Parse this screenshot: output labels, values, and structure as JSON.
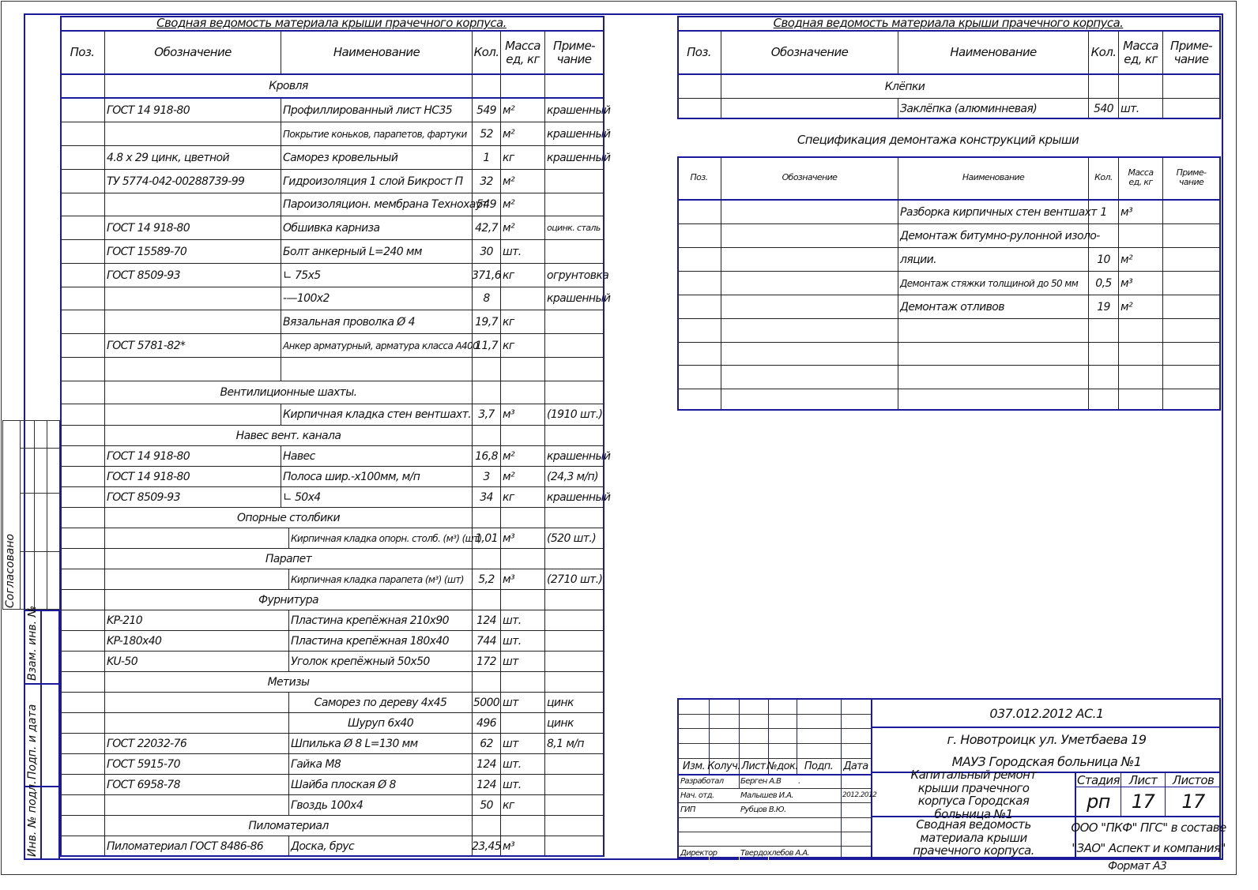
{
  "left_table": {
    "title": "Сводная ведомость материала  крыши прачечного корпуса.",
    "headers": {
      "pos": "Поз.",
      "designation": "Обозначение",
      "name": "Наименование",
      "qty": "Кол.",
      "mass": "Масса ед, кг",
      "note": "Приме- чание"
    },
    "rows": [
      {
        "section": "Кровля"
      },
      {
        "designation": "ГОСТ 14 918-80",
        "name": "Профиллированный лист НС35",
        "qty": "549",
        "unit": "м²",
        "note": "крашенный"
      },
      {
        "designation": "",
        "name": "Покрытие коньков, парапетов, фартуки",
        "qty": "52",
        "unit": "м²",
        "note": "крашенный"
      },
      {
        "designation": "4.8 х 29 цинк, цветной",
        "name": "Саморез кровельный",
        "qty": "1",
        "unit": "кг",
        "note": "крашенный"
      },
      {
        "designation": "ТУ 5774-042-00288739-99",
        "name": "Гидроизоляция 1 слой Бикрост П",
        "qty": "32",
        "unit": "м²",
        "note": ""
      },
      {
        "designation": "",
        "name": "Пароизоляцион. мембрана Технохаут",
        "qty": "549",
        "unit": "м²",
        "note": ""
      },
      {
        "designation": "ГОСТ 14 918-80",
        "name": "Обшивка карниза",
        "qty": "42,7",
        "unit": "м²",
        "note": "оцинк. сталь"
      },
      {
        "designation": "ГОСТ 15589-70",
        "name": "Болт анкерный L=240 мм",
        "qty": "30",
        "unit": "шт.",
        "note": ""
      },
      {
        "designation": "ГОСТ 8509-93",
        "name": "∟ 75х5",
        "qty": "371,6",
        "unit": "кг",
        "note": "огрунтовка"
      },
      {
        "designation": "",
        "name": "-—100х2",
        "qty": "8",
        "unit": "",
        "note": "крашенный"
      },
      {
        "designation": "",
        "name": "Вязальная проволка Ø 4",
        "qty": "19,7",
        "unit": "кг",
        "note": ""
      },
      {
        "designation": "ГОСТ 5781-82*",
        "name": "Анкер арматурный, арматура класса А400",
        "qty": "11,7",
        "unit": "кг",
        "note": ""
      },
      {
        "designation": "",
        "name": "",
        "qty": "",
        "unit": "",
        "note": ""
      },
      {
        "section": "Вентилиционные шахты."
      },
      {
        "designation": "",
        "name": "Кирпичная кладка стен вентшахт.",
        "qty": "3,7",
        "unit": "м³",
        "note": "(1910 шт.)"
      },
      {
        "section": "Навес вент. канала"
      },
      {
        "designation": " ГОСТ 14 918-80",
        "name": "Навес",
        "qty": "16,8",
        "unit": "м²",
        "note": "крашенный"
      },
      {
        "designation": "ГОСТ 14 918-80",
        "name": "Полоса шир.-х100мм, м/п",
        "qty": "3",
        "unit": "м²",
        "note": "(24,3 м/п)"
      },
      {
        "designation": "ГОСТ 8509-93",
        "name": "∟ 50х4",
        "qty": "34",
        "unit": "кг",
        "note": "крашенный"
      },
      {
        "section": "Опорные столбики"
      },
      {
        "designation": "",
        "name": "Кирпичная кладка опорн. столб. (м³) (шт)",
        "qty": "1,01",
        "unit": "м³",
        "note": "(520 шт.)",
        "split": true
      },
      {
        "section": "Парапет"
      },
      {
        "designation": "",
        "name": "Кирпичная кладка парапета (м³) (шт)",
        "qty": "5,2",
        "unit": "м³",
        "note": "(2710 шт.)",
        "split": true
      },
      {
        "section": "Фурнитура"
      },
      {
        "designation": "KP-210",
        "name": "Пластина крепёжная  210х90",
        "qty": "124",
        "unit": "шт.",
        "note": "",
        "split": true
      },
      {
        "designation": "KP-180х40",
        "name": "Пластина крепёжная  180х40",
        "qty": "744",
        "unit": "шт.",
        "note": "",
        "split": true
      },
      {
        "designation": "KU-50",
        "name": "Уголок крепёжный 50х50",
        "qty": "172",
        "unit": "шт",
        "note": "",
        "split": true
      },
      {
        "section": "Метизы"
      },
      {
        "designation": "",
        "name": "Саморез по дереву 4х45",
        "qty": "5000",
        "unit": "шт",
        "note": "цинк",
        "split": true,
        "center": true
      },
      {
        "designation": "",
        "name": "Шуруп 6х40",
        "qty": "496",
        "unit": "",
        "note": "цинк",
        "split": true,
        "center": true
      },
      {
        "designation": "ГОСТ 22032-76",
        "name": "Шпилька Ø 8 L=130 мм",
        "qty": "62",
        "unit": "шт",
        "note": "8,1 м/п",
        "split": true
      },
      {
        "designation": "ГОСТ 5915-70",
        "name": "Гайка М8",
        "qty": "124",
        "unit": "шт.",
        "note": "",
        "split": true
      },
      {
        "designation": "ГОСТ 6958-78",
        "name": "Шайба плоская Ø 8",
        "qty": "124",
        "unit": "шт.",
        "note": "",
        "split": true
      },
      {
        "designation": "",
        "name": "Гвоздь 100х4",
        "qty": "50",
        "unit": "кг",
        "note": "",
        "split": true
      },
      {
        "section": "Пиломатериал"
      },
      {
        "designation": "Пиломатериал ГОСТ 8486-86",
        "name": "Доска, брус",
        "qty": "23,45",
        "unit": "м³",
        "note": "",
        "split": true
      }
    ]
  },
  "right_table": {
    "title": "Сводная ведомость материала  крыши прачечного корпуса.",
    "headers": {
      "pos": "Поз.",
      "designation": "Обозначение",
      "name": "Наименование",
      "qty": "Кол.",
      "mass": "Масса ед, кг",
      "note": "Приме- чание"
    },
    "rows": [
      {
        "section": "Клёпки"
      },
      {
        "designation": "",
        "name": "Заклёпка (алюминневая)",
        "qty": "540",
        "unit": "шт.",
        "note": ""
      }
    ]
  },
  "demolition_table": {
    "title": "Спецификация демонтажа конструкций крыши",
    "headers": {
      "pos": "Поз.",
      "designation": "Обозначение",
      "name": "Наименование",
      "qty": "Кол.",
      "mass": "Масса ед, кг",
      "note": "Приме- чание"
    },
    "rows": [
      {
        "designation": "",
        "name": "Разборка кирпичных стен вентшахт",
        "qty": "1",
        "unit": "м³",
        "note": ""
      },
      {
        "designation": "",
        "name": "Демонтаж битумно-рулонной изоло-",
        "qty": "",
        "unit": "",
        "note": ""
      },
      {
        "designation": "",
        "name": "ляции.",
        "qty": "10",
        "unit": "м²",
        "note": ""
      },
      {
        "designation": "",
        "name": "Демонтаж   стяжки толщиной до 50 мм",
        "qty": "0,5",
        "unit": "м³",
        "note": ""
      },
      {
        "designation": "",
        "name": "Демонтаж отливов",
        "qty": "19",
        "unit": "м²",
        "note": ""
      },
      {
        "designation": "",
        "name": "",
        "qty": "",
        "unit": "",
        "note": ""
      },
      {
        "designation": "",
        "name": "",
        "qty": "",
        "unit": "",
        "note": ""
      },
      {
        "designation": "",
        "name": "",
        "qty": "",
        "unit": "",
        "note": ""
      },
      {
        "designation": "",
        "name": "",
        "qty": "",
        "unit": "",
        "note": ""
      }
    ]
  },
  "title_block": {
    "code": "037.012.2012 АС.1",
    "address": "г. Новотроицк ул. Уметбаева 19",
    "organization": "МАУЗ Городская больница №1",
    "project": "Капитальный ремонт крыши прачечного корпуса Городская больница №1",
    "sheet_title": "Сводная ведомость материала крыши прачечного корпуса.",
    "company_line1": "ООО \"ПКФ\" ПГС\" в составе",
    "company_line2": "\"ЗАО\" Аспект и компания\"",
    "stage_label": "Стадия",
    "sheet_label": "Лист",
    "sheets_label": "Листов",
    "stage": "рп",
    "sheet": "17",
    "sheets": "17",
    "col_headers": [
      "Изм.",
      "Колуч.",
      "Лист",
      "№док.",
      "Подп.",
      "Дата"
    ],
    "signers": [
      {
        "role": "Разработал",
        "name": "Берген А.В",
        "sign": ".",
        "date": ""
      },
      {
        "role": "Нач. отд.",
        "name": "Малышев И.А.",
        "sign": "",
        "date": "2012.2012"
      },
      {
        "role": "ГИП",
        "name": "Рубцов В.Ю.",
        "sign": "",
        "date": ""
      },
      {
        "role": "",
        "name": "",
        "sign": "",
        "date": ""
      },
      {
        "role": "",
        "name": "",
        "sign": "",
        "date": ""
      },
      {
        "role": "Директор",
        "name": "Твердохлебов А.А.",
        "sign": "",
        "date": ""
      }
    ],
    "format": "Формат    А3"
  },
  "side_stamps": {
    "agreed": "Согласовано",
    "inv_replace": "Взам. инв. №",
    "sign_date": "Подп. и дата",
    "inv_orig": "Инв. № подл."
  },
  "colors": {
    "frame": "#1a1a9a",
    "lines": "#222222"
  }
}
